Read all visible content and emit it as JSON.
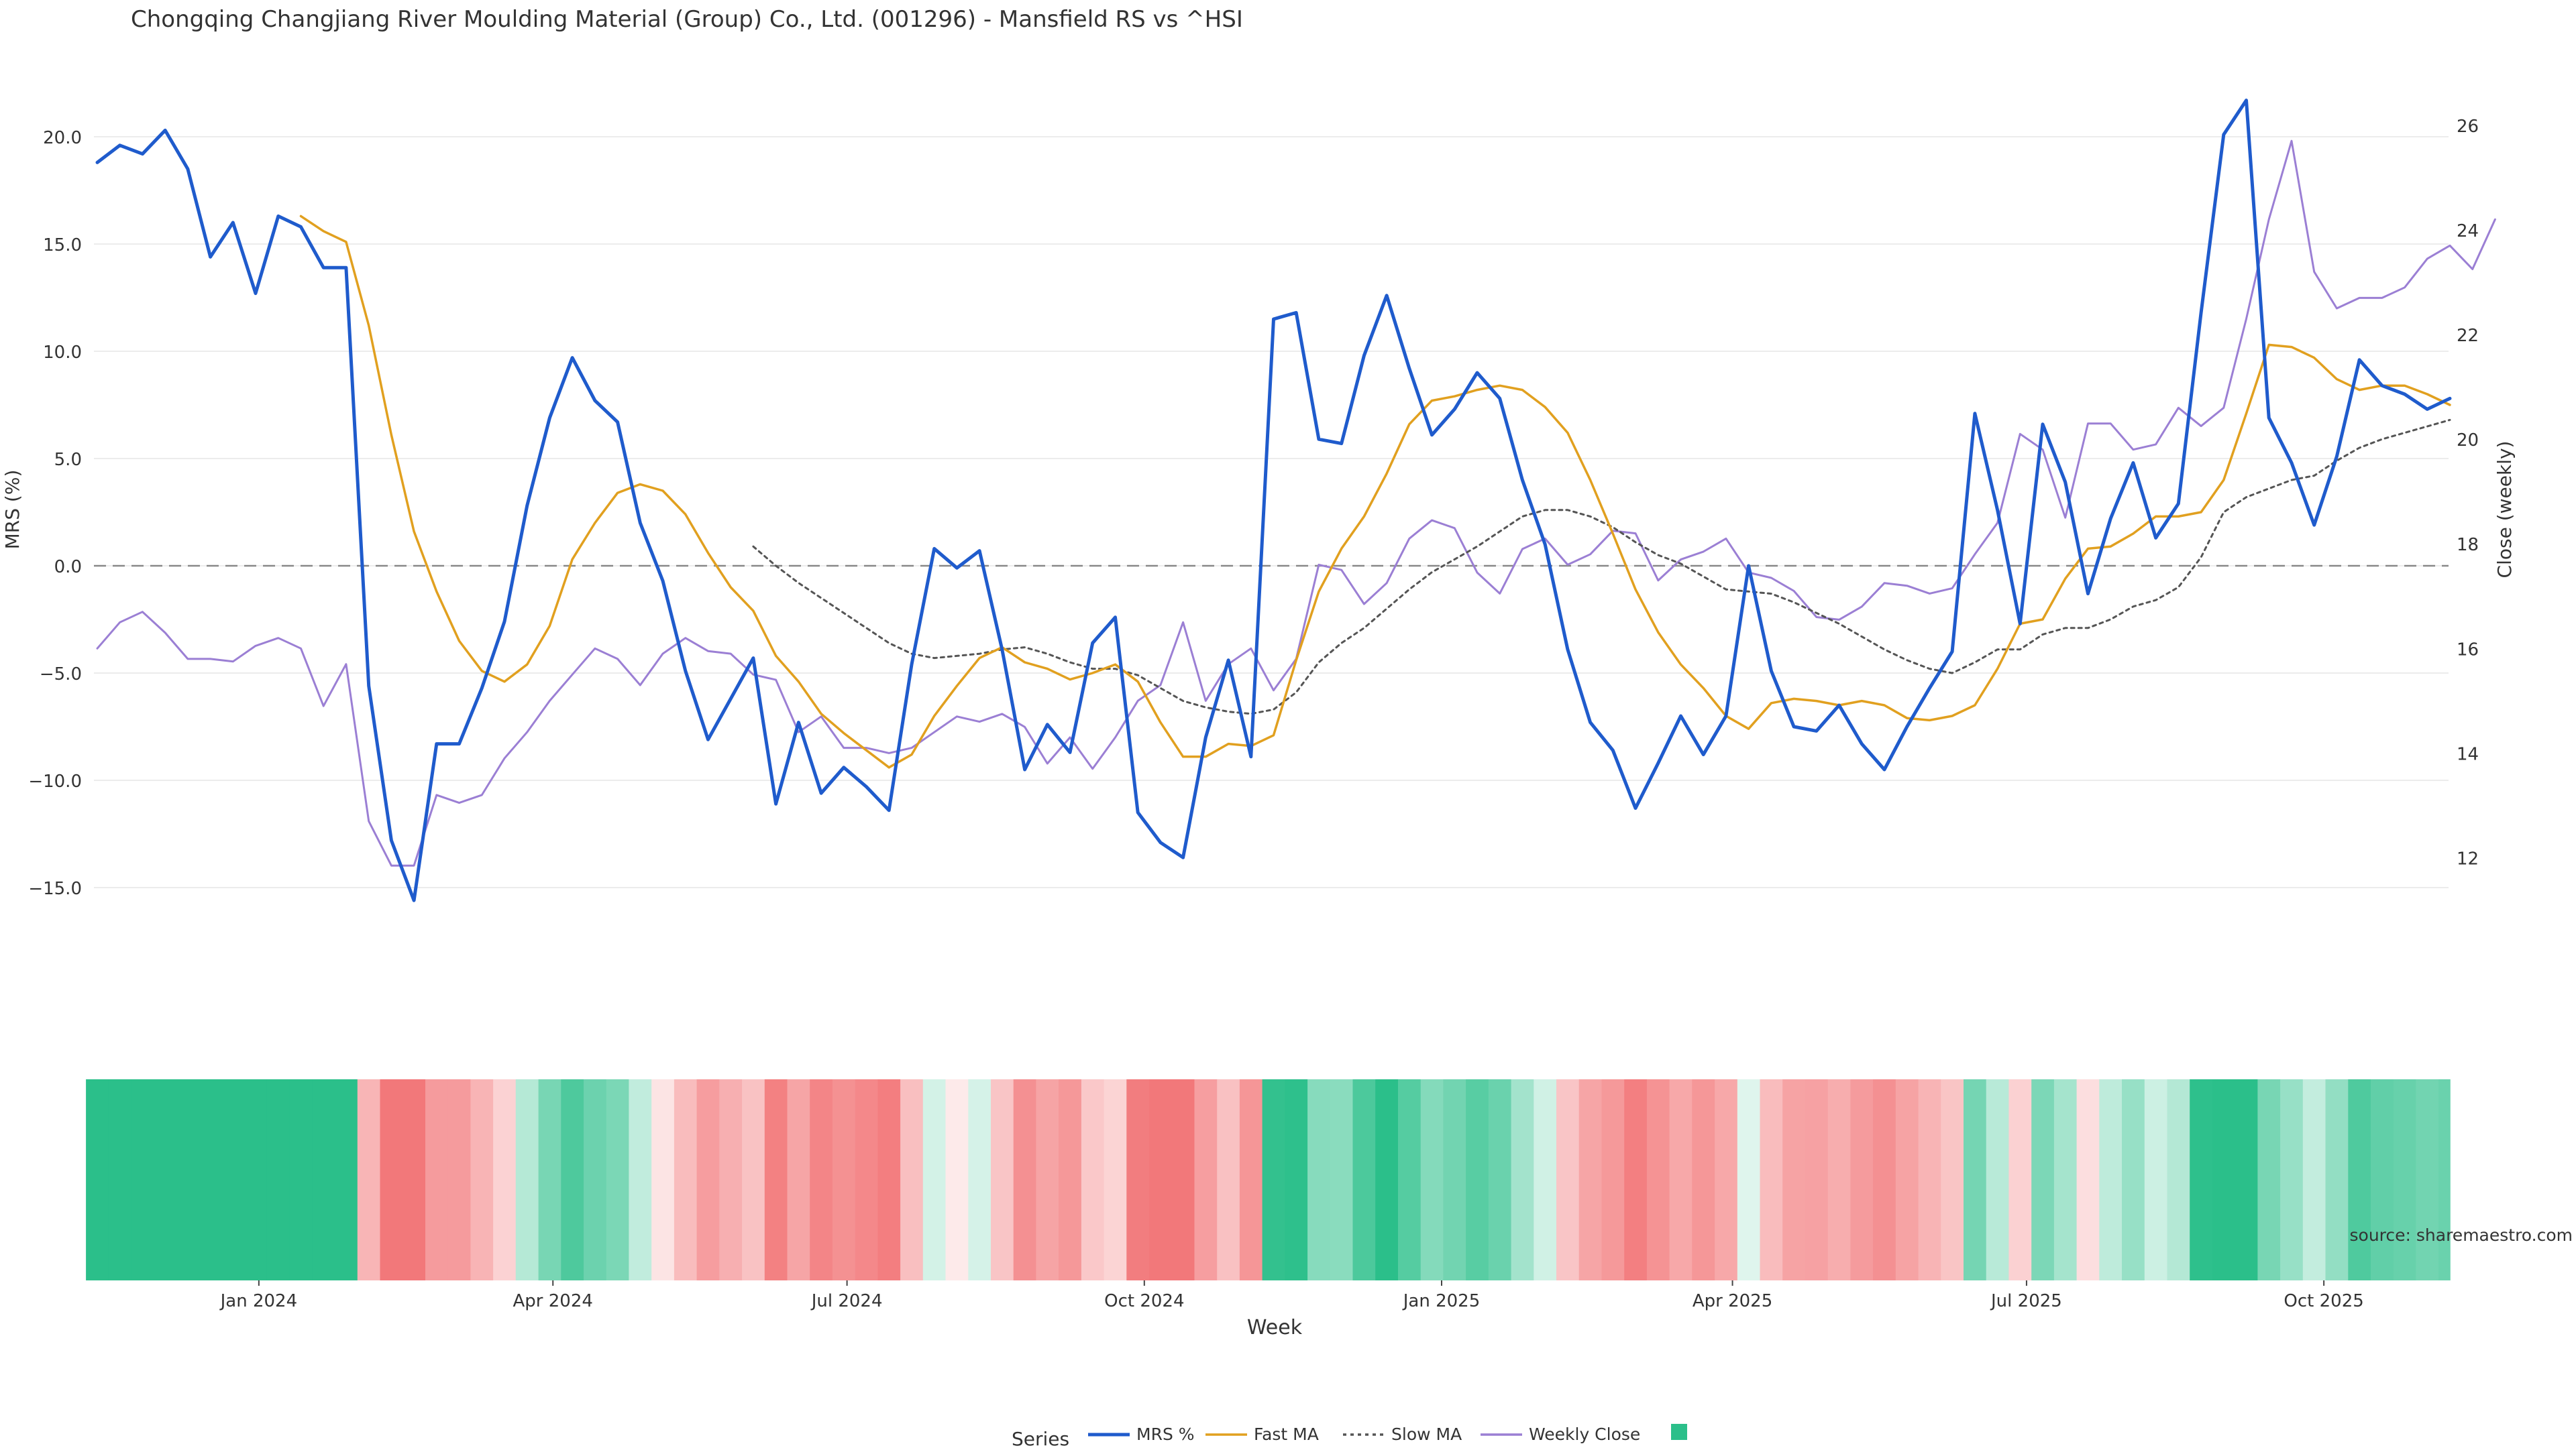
{
  "chart_data": {
    "type": "line",
    "title": "Chongqing Changjiang River Moulding Material (Group) Co., Ltd. (001296) - Mansfield RS vs ^HSI",
    "xlabel": "Week",
    "ylabel_left": "MRS (%)",
    "ylabel_right": "Close (weekly)",
    "source": "source: sharemaestro.com",
    "legend_title": "Series",
    "legend_position": "bottom-center",
    "grid": true,
    "x_start": "2023-11-12",
    "x_interval_days": 7,
    "x_ticks": [
      {
        "label": "Jan 2024",
        "date": "2024-01-01"
      },
      {
        "label": "Apr 2024",
        "date": "2024-04-01"
      },
      {
        "label": "Jul 2024",
        "date": "2024-07-01"
      },
      {
        "label": "Oct 2024",
        "date": "2024-10-01"
      },
      {
        "label": "Jan 2025",
        "date": "2025-01-01"
      },
      {
        "label": "Apr 2025",
        "date": "2025-04-01"
      },
      {
        "label": "Jul 2025",
        "date": "2025-07-01"
      },
      {
        "label": "Oct 2025",
        "date": "2025-10-01"
      }
    ],
    "y_left": {
      "range": [
        -18,
        22
      ],
      "ticks": [
        20.0,
        15.0,
        10.0,
        5.0,
        0.0,
        -5.0,
        -10.0,
        -15.0
      ],
      "tick_labels": [
        "20.0",
        "15.0",
        "10.0",
        "5.0",
        "0.0",
        "−5.0",
        "−10.0",
        "−15.0"
      ]
    },
    "y_right": {
      "range": [
        10.2,
        26.6
      ],
      "ticks": [
        12,
        14,
        16,
        18,
        20,
        22,
        24,
        26
      ],
      "tick_labels": [
        "12",
        "14",
        "16",
        "18",
        "20",
        "22",
        "24",
        "26"
      ]
    },
    "zero_line": 0,
    "series": [
      {
        "name": "MRS %",
        "color": "#1f5bcc",
        "style": "solid",
        "axis": "left",
        "values": [
          18.8,
          19.6,
          19.2,
          20.3,
          18.5,
          14.4,
          16.0,
          12.7,
          16.3,
          15.8,
          13.9,
          13.9,
          -5.6,
          -12.8,
          -15.6,
          -8.3,
          -8.3,
          -5.7,
          -2.6,
          2.8,
          6.9,
          9.7,
          7.7,
          6.7,
          2.0,
          -0.7,
          -4.9,
          -8.1,
          -6.2,
          -4.3,
          -11.1,
          -7.3,
          -10.6,
          -9.4,
          -10.3,
          -11.4,
          -4.6,
          0.8,
          -0.1,
          0.7,
          -3.9,
          -9.5,
          -7.4,
          -8.7,
          -3.6,
          -2.4,
          -11.5,
          -12.9,
          -13.6,
          -8.0,
          -4.4,
          -8.9,
          11.5,
          11.8,
          5.9,
          5.7,
          9.8,
          12.6,
          9.2,
          6.1,
          7.3,
          9.0,
          7.8,
          4.0,
          1.0,
          -3.9,
          -7.3,
          -8.6,
          -11.3,
          -9.2,
          -7.0,
          -8.8,
          -7.0,
          0.0,
          -4.9,
          -7.5,
          -7.7,
          -6.5,
          -8.3,
          -9.5,
          -7.5,
          -5.7,
          -4.0,
          7.1,
          2.6,
          -2.7,
          6.6,
          3.9,
          -1.3,
          2.2,
          4.8,
          1.3,
          2.9,
          11.8,
          20.1,
          21.7,
          6.9,
          4.8,
          1.9,
          5.1,
          9.6,
          8.4,
          8.0,
          7.3,
          7.8
        ]
      },
      {
        "name": "Fast MA",
        "color": "#e1a01f",
        "style": "solid",
        "axis": "left",
        "values": [
          null,
          null,
          null,
          null,
          null,
          null,
          null,
          null,
          null,
          16.3,
          15.6,
          15.1,
          11.2,
          6.1,
          1.6,
          -1.2,
          -3.5,
          -4.9,
          -5.4,
          -4.6,
          -2.8,
          0.3,
          2.0,
          3.4,
          3.8,
          3.5,
          2.4,
          0.6,
          -1.0,
          -2.1,
          -4.2,
          -5.4,
          -6.9,
          -7.8,
          -8.6,
          -9.4,
          -8.8,
          -7.0,
          -5.6,
          -4.3,
          -3.8,
          -4.5,
          -4.8,
          -5.3,
          -5.0,
          -4.6,
          -5.4,
          -7.3,
          -8.9,
          -8.9,
          -8.3,
          -8.4,
          -7.9,
          -4.4,
          -1.2,
          0.8,
          2.3,
          4.3,
          6.6,
          7.7,
          7.9,
          8.2,
          8.4,
          8.2,
          7.4,
          6.2,
          4.0,
          1.5,
          -1.1,
          -3.1,
          -4.6,
          -5.7,
          -7.0,
          -7.6,
          -6.4,
          -6.2,
          -6.3,
          -6.5,
          -6.3,
          -6.5,
          -7.1,
          -7.2,
          -7.0,
          -6.5,
          -4.8,
          -2.7,
          -2.5,
          -0.6,
          0.8,
          0.9,
          1.5,
          2.3,
          2.3,
          2.5,
          4.0,
          7.1,
          10.3,
          10.2,
          9.7,
          8.7,
          8.2,
          8.4,
          8.4,
          8.0,
          7.5
        ]
      },
      {
        "name": "Slow MA",
        "color": "#555555",
        "style": "dotted",
        "axis": "left",
        "values": [
          null,
          null,
          null,
          null,
          null,
          null,
          null,
          null,
          null,
          null,
          null,
          null,
          null,
          null,
          null,
          null,
          null,
          null,
          null,
          null,
          null,
          null,
          null,
          null,
          null,
          null,
          null,
          null,
          null,
          0.9,
          0.0,
          -0.8,
          -1.5,
          -2.2,
          -2.9,
          -3.6,
          -4.1,
          -4.3,
          -4.2,
          -4.1,
          -3.9,
          -3.8,
          -4.1,
          -4.5,
          -4.8,
          -4.8,
          -5.1,
          -5.7,
          -6.3,
          -6.6,
          -6.8,
          -6.9,
          -6.7,
          -5.9,
          -4.5,
          -3.6,
          -2.9,
          -2.0,
          -1.1,
          -0.3,
          0.3,
          0.9,
          1.6,
          2.3,
          2.6,
          2.6,
          2.3,
          1.8,
          1.1,
          0.5,
          0.1,
          -0.5,
          -1.1,
          -1.2,
          -1.3,
          -1.7,
          -2.2,
          -2.7,
          -3.3,
          -3.9,
          -4.4,
          -4.8,
          -5.0,
          -4.5,
          -3.9,
          -3.9,
          -3.2,
          -2.9,
          -2.9,
          -2.5,
          -1.9,
          -1.6,
          -1.0,
          0.4,
          2.5,
          3.2,
          3.6,
          4.0,
          4.2,
          4.9,
          5.5,
          5.9,
          6.2,
          6.5,
          6.8
        ]
      },
      {
        "name": "Weekly Close",
        "color": "#9b7fd4",
        "style": "solid",
        "axis": "right",
        "values": [
          16.0,
          16.5,
          16.7,
          16.3,
          15.8,
          15.8,
          15.75,
          16.05,
          16.2,
          16.0,
          14.9,
          15.7,
          12.7,
          11.85,
          11.85,
          13.2,
          13.05,
          13.2,
          13.9,
          14.4,
          15.0,
          15.5,
          16.0,
          15.8,
          15.3,
          15.9,
          16.2,
          15.95,
          15.9,
          15.5,
          15.4,
          14.4,
          14.7,
          14.1,
          14.1,
          14.0,
          14.1,
          14.4,
          14.7,
          14.6,
          14.75,
          14.5,
          13.8,
          14.3,
          13.7,
          14.3,
          15.0,
          15.3,
          16.5,
          15.0,
          15.7,
          16.0,
          15.2,
          15.8,
          17.6,
          17.5,
          16.85,
          17.25,
          18.1,
          18.45,
          18.3,
          17.45,
          17.05,
          17.9,
          18.1,
          17.6,
          17.8,
          18.25,
          18.2,
          17.3,
          17.7,
          17.85,
          18.1,
          17.45,
          17.35,
          17.1,
          16.6,
          16.55,
          16.8,
          17.25,
          17.2,
          17.05,
          17.15,
          17.8,
          18.4,
          20.1,
          19.8,
          18.5,
          20.3,
          20.3,
          19.8,
          19.9,
          20.6,
          20.25,
          20.6,
          22.3,
          24.2,
          25.7,
          23.2,
          22.5,
          22.7,
          22.7,
          22.9,
          23.45,
          23.7,
          23.25,
          24.2
        ]
      }
    ],
    "heatmap": {
      "type": "heatmap",
      "description_values": "MRS % per week (same order as series MRS %)",
      "positive_color": "#2bbf8a",
      "negative_color": "#f2787a"
    }
  }
}
